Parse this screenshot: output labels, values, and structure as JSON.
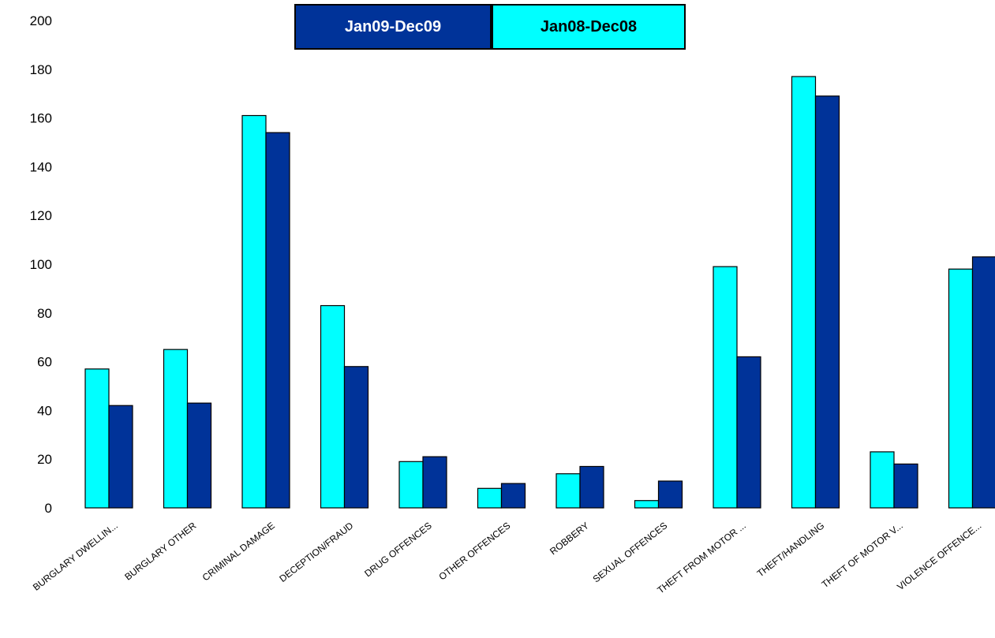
{
  "chart_data": {
    "type": "bar",
    "title": "",
    "xlabel": "",
    "ylabel": "",
    "ylim": [
      0,
      200
    ],
    "yticks": [
      0,
      20,
      40,
      60,
      80,
      100,
      120,
      140,
      160,
      180,
      200
    ],
    "grid": false,
    "legend_position": "top",
    "categories": [
      "BURGLARY DWELLIN...",
      "BURGLARY OTHER",
      "CRIMINAL DAMAGE",
      "DECEPTION/FRAUD",
      "DRUG OFFENCES",
      "OTHER OFFENCES",
      "ROBBERY",
      "SEXUAL OFFENCES",
      "THEFT FROM MOTOR ...",
      "THEFT/HANDLING",
      "THEFT OF MOTOR V...",
      "VIOLENCE OFFENCE..."
    ],
    "series": [
      {
        "name": "Jan08-Dec08",
        "color": "#00ffff",
        "values": [
          57,
          65,
          161,
          83,
          19,
          8,
          14,
          3,
          99,
          177,
          23,
          98
        ]
      },
      {
        "name": "Jan09-Dec09",
        "color": "#003399",
        "values": [
          42,
          43,
          154,
          58,
          21,
          10,
          17,
          11,
          62,
          169,
          18,
          103
        ]
      }
    ]
  },
  "legend": {
    "item_a": {
      "label": "Jan09-Dec09",
      "bg": "#003399",
      "fg": "#ffffff"
    },
    "item_b": {
      "label": "Jan08-Dec08",
      "bg": "#00ffff",
      "fg": "#000000"
    }
  }
}
